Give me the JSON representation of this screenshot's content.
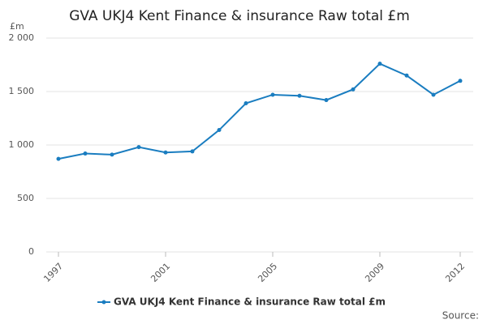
{
  "chart_data": {
    "type": "line",
    "title": "GVA UKJ4 Kent Finance & insurance Raw total £m",
    "y_label": "£m",
    "source": "Source:",
    "x": [
      1997,
      1998,
      1999,
      2000,
      2001,
      2002,
      2003,
      2004,
      2005,
      2006,
      2007,
      2008,
      2009,
      2010,
      2011,
      2012
    ],
    "series": [
      {
        "name": "GVA UKJ4 Kent Finance & insurance Raw total £m",
        "color": "#1a7dc0",
        "values": [
          870,
          920,
          910,
          980,
          930,
          940,
          1140,
          1390,
          1470,
          1460,
          1420,
          1520,
          1760,
          1650,
          1470,
          1600
        ]
      }
    ],
    "xlim": [
      1997,
      2012
    ],
    "xticks": [
      1997,
      2001,
      2005,
      2009,
      2012
    ],
    "ylim": [
      0,
      2000
    ],
    "yticks": [
      0,
      500,
      {
        "value": 1000,
        "label": "1 000"
      },
      {
        "value": 1500,
        "label": "1 500"
      },
      {
        "value": 2000,
        "label": "2 000"
      }
    ],
    "grid": true
  }
}
